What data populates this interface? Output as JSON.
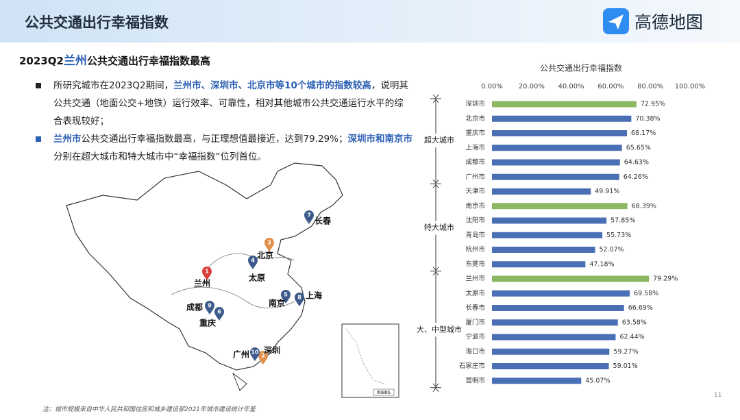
{
  "header": {
    "title": "公共交通出行幸福指数",
    "logo": "高德地图"
  },
  "subtitle": {
    "prefix": "2023Q2",
    "highlight": "兰州",
    "suffix": "公共交通出行幸福指数最高"
  },
  "bullets": [
    {
      "parts": [
        {
          "text": "所研究城市在2023Q2期间，",
          "bold": false
        },
        {
          "text": "兰州市、深圳市、北京市等10个城市的指数较高",
          "bold": true
        },
        {
          "text": "，说明其公共交通（地面公交+地铁）运行效率、可靠性，相对其他城市公共交通运行水平的综合表现较好；",
          "bold": false
        }
      ]
    },
    {
      "parts": [
        {
          "text": "兰州市",
          "bold": true
        },
        {
          "text": "公共交通出行幸福指数最高，与正理想值最接近，达到79.29%；",
          "bold": false
        },
        {
          "text": "深圳市和南京市",
          "bold": true
        },
        {
          "text": "分别在超大城市和特大城市中“幸福指数”位列首位。",
          "bold": false
        }
      ]
    }
  ],
  "map": {
    "cities": [
      {
        "rank": "1",
        "name": "兰州",
        "color": "#d9403a"
      },
      {
        "rank": "2",
        "name": "深圳",
        "color": "#e0904c"
      },
      {
        "rank": "3",
        "name": "北京",
        "color": "#e0904c"
      },
      {
        "rank": "4",
        "name": "太原",
        "color": "#3d5a8c"
      },
      {
        "rank": "5",
        "name": "南京",
        "color": "#3d5a8c"
      },
      {
        "rank": "6",
        "name": "重庆",
        "color": "#3d5a8c"
      },
      {
        "rank": "7",
        "name": "长春",
        "color": "#3d5a8c"
      },
      {
        "rank": "8",
        "name": "上海",
        "color": "#3d5a8c"
      },
      {
        "rank": "9",
        "name": "成都",
        "color": "#3d5a8c"
      },
      {
        "rank": "10",
        "name": "广州",
        "color": "#3d5a8c"
      }
    ],
    "inset_label": "南海诸岛"
  },
  "footnote": "注：城市规模来自中华人民共和国住房和城乡建设部2021年城市建设统计年鉴",
  "page_number": "11",
  "chart_data": {
    "type": "bar",
    "orientation": "horizontal",
    "title": "公共交通出行幸福指数",
    "xlim": [
      0,
      100
    ],
    "xticks": [
      {
        "value": 0,
        "label": "0.00%"
      },
      {
        "value": 20,
        "label": "20.00%"
      },
      {
        "value": 40,
        "label": "40.00%"
      },
      {
        "value": 60,
        "label": "60.00%"
      },
      {
        "value": 80,
        "label": "80.00%"
      },
      {
        "value": 100,
        "label": "100.00%"
      }
    ],
    "groups": [
      {
        "name": "超大城市",
        "categories": [
          "深圳市",
          "北京市",
          "重庆市",
          "上海市",
          "成都市",
          "广州市"
        ],
        "values": [
          72.95,
          70.38,
          68.17,
          65.65,
          64.63,
          64.26
        ],
        "value_labels": [
          "72.95%",
          "70.38%",
          "68.17%",
          "65.65%",
          "64.63%",
          "64.26%"
        ],
        "colors": [
          "#8cb863",
          "#4a6fb5",
          "#4a6fb5",
          "#4a6fb5",
          "#4a6fb5",
          "#4a6fb5"
        ]
      },
      {
        "name": "特大城市",
        "categories": [
          "天津市",
          "南京市",
          "沈阳市",
          "青岛市",
          "杭州市",
          "东莞市"
        ],
        "values": [
          49.91,
          68.39,
          57.85,
          55.73,
          52.07,
          47.18
        ],
        "value_labels": [
          "49.91%",
          "68.39%",
          "57.85%",
          "55.73%",
          "52.07%",
          "47.18%"
        ],
        "colors": [
          "#4a6fb5",
          "#8cb863",
          "#4a6fb5",
          "#4a6fb5",
          "#4a6fb5",
          "#4a6fb5"
        ]
      },
      {
        "name": "大、中型城市",
        "categories": [
          "兰州市",
          "太原市",
          "长春市",
          "厦门市",
          "宁波市",
          "海口市",
          "石家庄市",
          "昆明市"
        ],
        "values": [
          79.29,
          69.58,
          66.69,
          63.58,
          62.44,
          59.27,
          59.01,
          45.07
        ],
        "value_labels": [
          "79.29%",
          "69.58%",
          "66.69%",
          "63.58%",
          "62.44%",
          "59.27%",
          "59.01%",
          "45.07%"
        ],
        "colors": [
          "#8cb863",
          "#4a6fb5",
          "#4a6fb5",
          "#4a6fb5",
          "#4a6fb5",
          "#4a6fb5",
          "#4a6fb5",
          "#4a6fb5"
        ]
      }
    ]
  }
}
